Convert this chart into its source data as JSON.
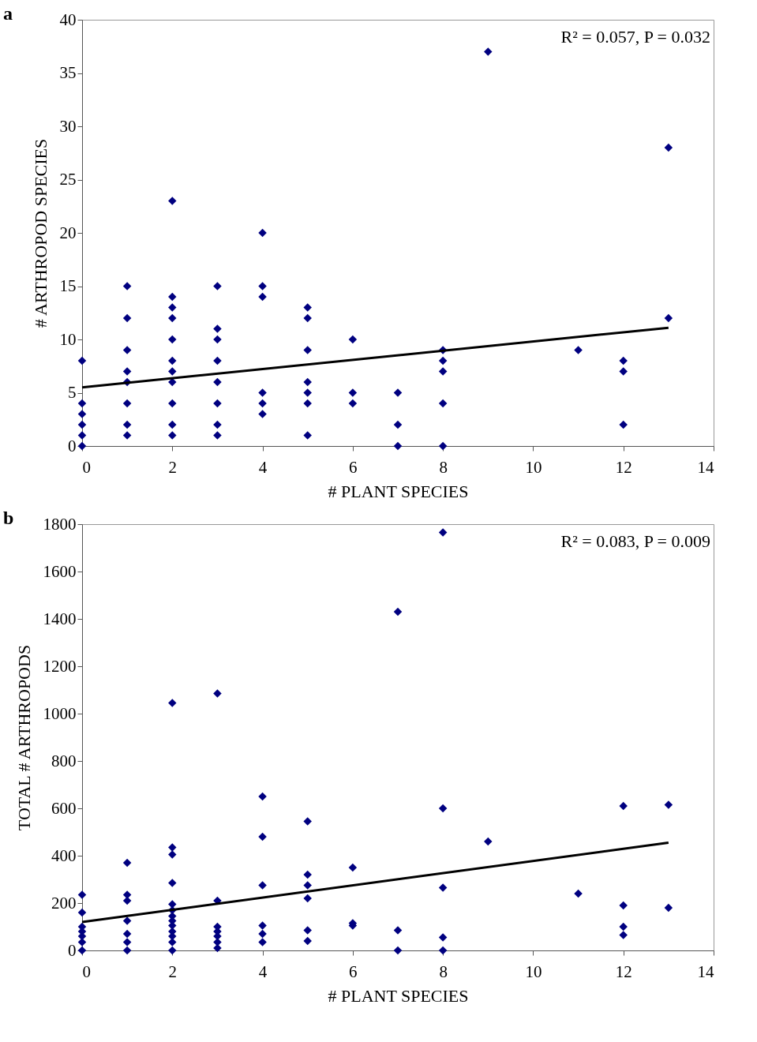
{
  "chart_data": [
    {
      "type": "scatter",
      "title": "a",
      "xlabel": "# PLANT SPECIES",
      "ylabel": "# ARTHROPOD SPECIES",
      "annotations": [
        "R² = 0.057, P = 0.032"
      ],
      "grid": false,
      "xlim": [
        0,
        14
      ],
      "xticks": [
        0,
        2,
        4,
        6,
        8,
        10,
        12,
        14
      ],
      "ylim": [
        0,
        40
      ],
      "yticks": [
        0,
        5,
        10,
        15,
        20,
        25,
        30,
        35,
        40
      ],
      "series": [
        {
          "marker": "diamond",
          "color": "#000080",
          "x": [
            0,
            0,
            0,
            0,
            0,
            0,
            1,
            1,
            1,
            1,
            1,
            1,
            1,
            1,
            2,
            2,
            2,
            2,
            2,
            2,
            2,
            2,
            2,
            2,
            2,
            3,
            3,
            3,
            3,
            3,
            3,
            3,
            3,
            4,
            4,
            4,
            4,
            4,
            4,
            5,
            5,
            5,
            5,
            5,
            5,
            5,
            6,
            6,
            6,
            7,
            7,
            7,
            8,
            8,
            8,
            8,
            8,
            9,
            11,
            12,
            12,
            12,
            13,
            13
          ],
          "values": [
            0,
            1,
            2,
            3,
            4,
            8,
            1,
            2,
            4,
            6,
            7,
            9,
            12,
            15,
            1,
            2,
            4,
            6,
            7,
            8,
            10,
            12,
            13,
            14,
            23,
            1,
            2,
            4,
            6,
            8,
            10,
            11,
            15,
            3,
            4,
            5,
            14,
            15,
            20,
            1,
            4,
            5,
            6,
            9,
            12,
            13,
            4,
            5,
            10,
            0,
            2,
            5,
            0,
            4,
            7,
            8,
            9,
            37,
            9,
            2,
            7,
            8,
            12,
            28
          ]
        },
        {
          "type": "line",
          "color": "#000000",
          "x": [
            0,
            13
          ],
          "values": [
            5.5,
            11.1
          ]
        }
      ]
    },
    {
      "type": "scatter",
      "title": "b",
      "xlabel": "# PLANT SPECIES",
      "ylabel": "TOTAL # ARTHROPODS",
      "annotations": [
        "R² = 0.083, P = 0.009"
      ],
      "grid": false,
      "xlim": [
        0,
        14
      ],
      "xticks": [
        0,
        2,
        4,
        6,
        8,
        10,
        12,
        14
      ],
      "ylim": [
        0,
        1800
      ],
      "yticks": [
        0,
        200,
        400,
        600,
        800,
        1000,
        1200,
        1400,
        1600,
        1800
      ],
      "series": [
        {
          "marker": "diamond",
          "color": "#000080",
          "x": [
            0,
            0,
            0,
            0,
            0,
            0,
            0,
            1,
            1,
            1,
            1,
            1,
            1,
            1,
            2,
            2,
            2,
            2,
            2,
            2,
            2,
            2,
            2,
            2,
            2,
            2,
            2,
            3,
            3,
            3,
            3,
            3,
            3,
            3,
            4,
            4,
            4,
            4,
            4,
            4,
            5,
            5,
            5,
            5,
            5,
            5,
            6,
            6,
            6,
            7,
            7,
            7,
            8,
            8,
            8,
            8,
            8,
            9,
            11,
            12,
            12,
            12,
            12,
            13,
            13
          ],
          "values": [
            0,
            35,
            60,
            80,
            100,
            160,
            235,
            0,
            35,
            70,
            125,
            210,
            235,
            370,
            0,
            35,
            60,
            80,
            105,
            125,
            145,
            170,
            195,
            285,
            405,
            435,
            1045,
            10,
            35,
            60,
            80,
            100,
            210,
            1085,
            35,
            70,
            105,
            275,
            480,
            650,
            40,
            85,
            220,
            275,
            320,
            545,
            105,
            115,
            350,
            0,
            85,
            1430,
            0,
            55,
            265,
            600,
            1765,
            460,
            240,
            65,
            100,
            190,
            610,
            180,
            615
          ]
        },
        {
          "type": "line",
          "color": "#000000",
          "x": [
            0,
            13
          ],
          "values": [
            120,
            455
          ]
        }
      ]
    }
  ]
}
